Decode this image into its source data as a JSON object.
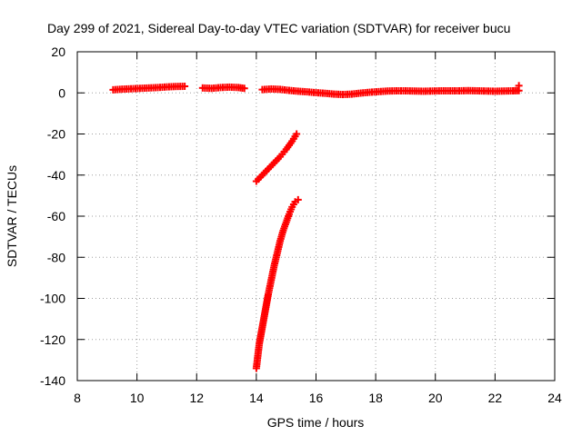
{
  "chart_data": {
    "type": "scatter",
    "title": "Day 299 of 2021, Sidereal Day-to-day VTEC variation (SDTVAR) for receiver bucu",
    "xlabel": "GPS time / hours",
    "ylabel": "SDTVAR / TECUs",
    "xlim": [
      8,
      24
    ],
    "ylim": [
      -140,
      20
    ],
    "x_ticks": [
      8,
      10,
      12,
      14,
      16,
      18,
      20,
      22,
      24
    ],
    "y_ticks": [
      20,
      0,
      -20,
      -40,
      -60,
      -80,
      -100,
      -120,
      -140
    ],
    "x_tick_labels": [
      "8",
      "10",
      "12",
      "14",
      "16",
      "18",
      "20",
      "22",
      "24"
    ],
    "y_tick_labels": [
      "20",
      "0",
      "-20",
      "-40",
      "-60",
      "-80",
      "-100",
      "-120",
      "-140"
    ],
    "grid": true,
    "marker": "plus",
    "series": [
      {
        "color": "#ff0000",
        "points": [
          [
            9.2,
            1.5
          ],
          [
            9.5,
            1.8
          ],
          [
            9.8,
            2.0
          ],
          [
            10.1,
            2.2
          ],
          [
            10.4,
            2.4
          ],
          [
            10.7,
            2.6
          ],
          [
            11.0,
            2.9
          ],
          [
            11.3,
            3.1
          ],
          [
            11.6,
            3.2
          ],
          [
            12.2,
            2.4
          ],
          [
            12.5,
            2.2
          ],
          [
            12.8,
            2.6
          ],
          [
            13.1,
            2.8
          ],
          [
            13.4,
            2.6
          ],
          [
            13.6,
            2.2
          ],
          [
            14.2,
            1.6
          ],
          [
            14.5,
            1.9
          ],
          [
            14.8,
            1.7
          ],
          [
            15.1,
            1.2
          ],
          [
            15.4,
            0.8
          ],
          [
            15.7,
            0.5
          ],
          [
            16.0,
            0.1
          ],
          [
            16.3,
            -0.2
          ],
          [
            16.6,
            -0.6
          ],
          [
            16.9,
            -0.8
          ],
          [
            17.2,
            -0.6
          ],
          [
            17.5,
            -0.1
          ],
          [
            17.8,
            0.3
          ],
          [
            18.1,
            0.6
          ],
          [
            18.4,
            0.9
          ],
          [
            18.7,
            1.0
          ],
          [
            19.0,
            1.0
          ],
          [
            19.3,
            0.9
          ],
          [
            19.6,
            0.8
          ],
          [
            19.9,
            0.9
          ],
          [
            20.2,
            1.0
          ],
          [
            20.5,
            1.0
          ],
          [
            20.8,
            1.0
          ],
          [
            21.1,
            1.1
          ],
          [
            21.4,
            1.0
          ],
          [
            21.7,
            0.9
          ],
          [
            22.0,
            0.8
          ],
          [
            22.3,
            0.9
          ],
          [
            22.6,
            1.0
          ],
          [
            22.8,
            1.1
          ],
          [
            22.8,
            3.5
          ],
          [
            14.0,
            -43
          ],
          [
            14.2,
            -40
          ],
          [
            14.4,
            -37
          ],
          [
            14.6,
            -34
          ],
          [
            14.8,
            -31
          ],
          [
            15.0,
            -27.5
          ],
          [
            15.2,
            -23.5
          ],
          [
            15.35,
            -20
          ],
          [
            14.0,
            -134
          ],
          [
            14.05,
            -128
          ],
          [
            14.1,
            -122
          ],
          [
            14.2,
            -114
          ],
          [
            14.3,
            -106
          ],
          [
            14.4,
            -98
          ],
          [
            14.5,
            -91
          ],
          [
            14.6,
            -84
          ],
          [
            14.7,
            -78
          ],
          [
            14.8,
            -72
          ],
          [
            14.9,
            -67
          ],
          [
            15.0,
            -63
          ],
          [
            15.1,
            -59
          ],
          [
            15.2,
            -55.5
          ],
          [
            15.3,
            -53
          ],
          [
            15.4,
            -52
          ]
        ]
      }
    ]
  }
}
